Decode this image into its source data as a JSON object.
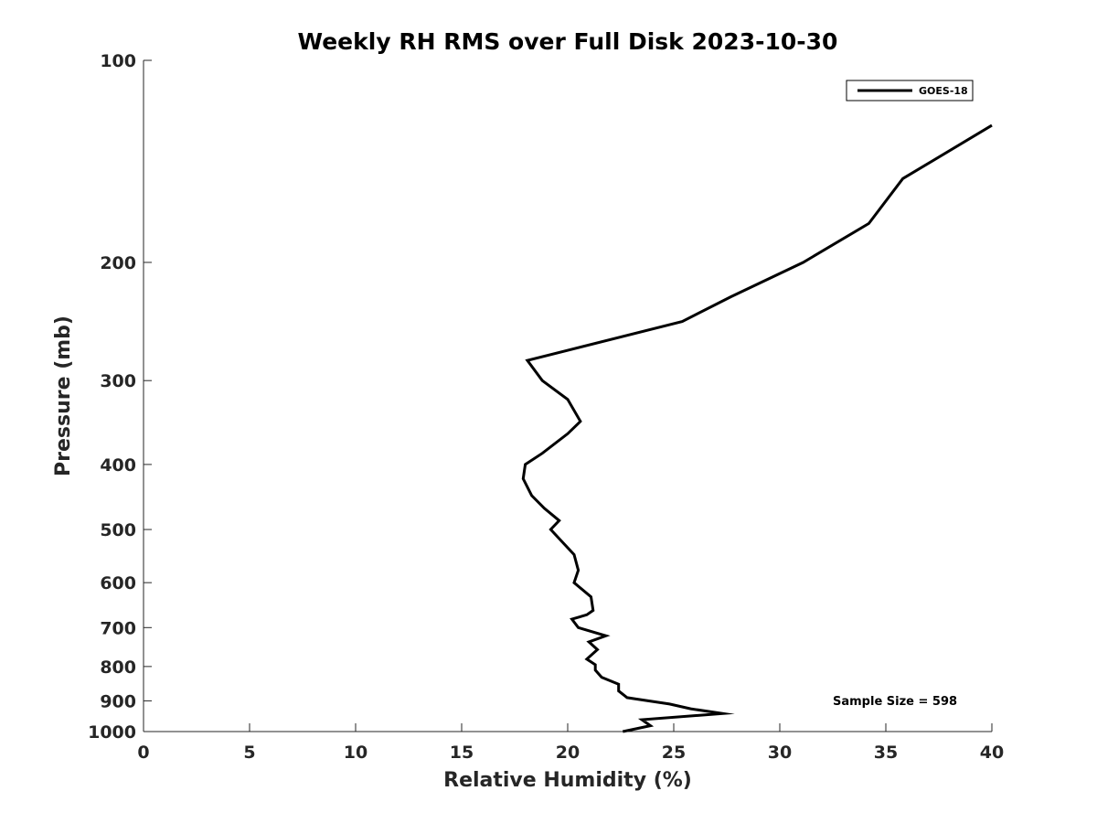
{
  "chart_data": {
    "type": "line",
    "title": "Weekly RH RMS over Full Disk 2023-10-30",
    "xlabel": "Relative Humidity (%)",
    "ylabel": "Pressure (mb)",
    "xlim": [
      0,
      40
    ],
    "ylim": [
      100,
      1000
    ],
    "y_scale": "log",
    "y_reversed": true,
    "grid": false,
    "legend_position": "top-right",
    "x_ticks": [
      "0",
      "5",
      "10",
      "15",
      "20",
      "25",
      "30",
      "35",
      "40"
    ],
    "y_ticks": [
      "100",
      "200",
      "300",
      "400",
      "500",
      "600",
      "700",
      "800",
      "900",
      "1000"
    ],
    "series": [
      {
        "name": "GOES-18",
        "color": "#000000",
        "x": [
          40.0,
          35.8,
          34.2,
          31.1,
          27.7,
          25.4,
          18.1,
          18.8,
          20.0,
          20.6,
          20.0,
          18.8,
          18.0,
          17.9,
          18.3,
          18.9,
          19.6,
          19.2,
          19.7,
          20.3,
          20.5,
          20.3,
          21.1,
          21.2,
          20.9,
          20.2,
          20.5,
          21.8,
          21.0,
          21.4,
          20.9,
          21.3,
          21.3,
          21.6,
          22.4,
          22.4,
          22.8,
          24.8,
          25.8,
          27.3,
          23.5,
          23.9,
          22.6
        ],
        "y": [
          125,
          150,
          175,
          200,
          225,
          245,
          280,
          300,
          320,
          345,
          360,
          385,
          400,
          420,
          445,
          465,
          485,
          500,
          520,
          545,
          575,
          600,
          630,
          660,
          670,
          680,
          700,
          720,
          735,
          755,
          780,
          795,
          810,
          830,
          850,
          870,
          890,
          910,
          925,
          940,
          960,
          980,
          1000
        ]
      }
    ]
  },
  "annotations": {
    "sample_size": "Sample Size = 598"
  }
}
